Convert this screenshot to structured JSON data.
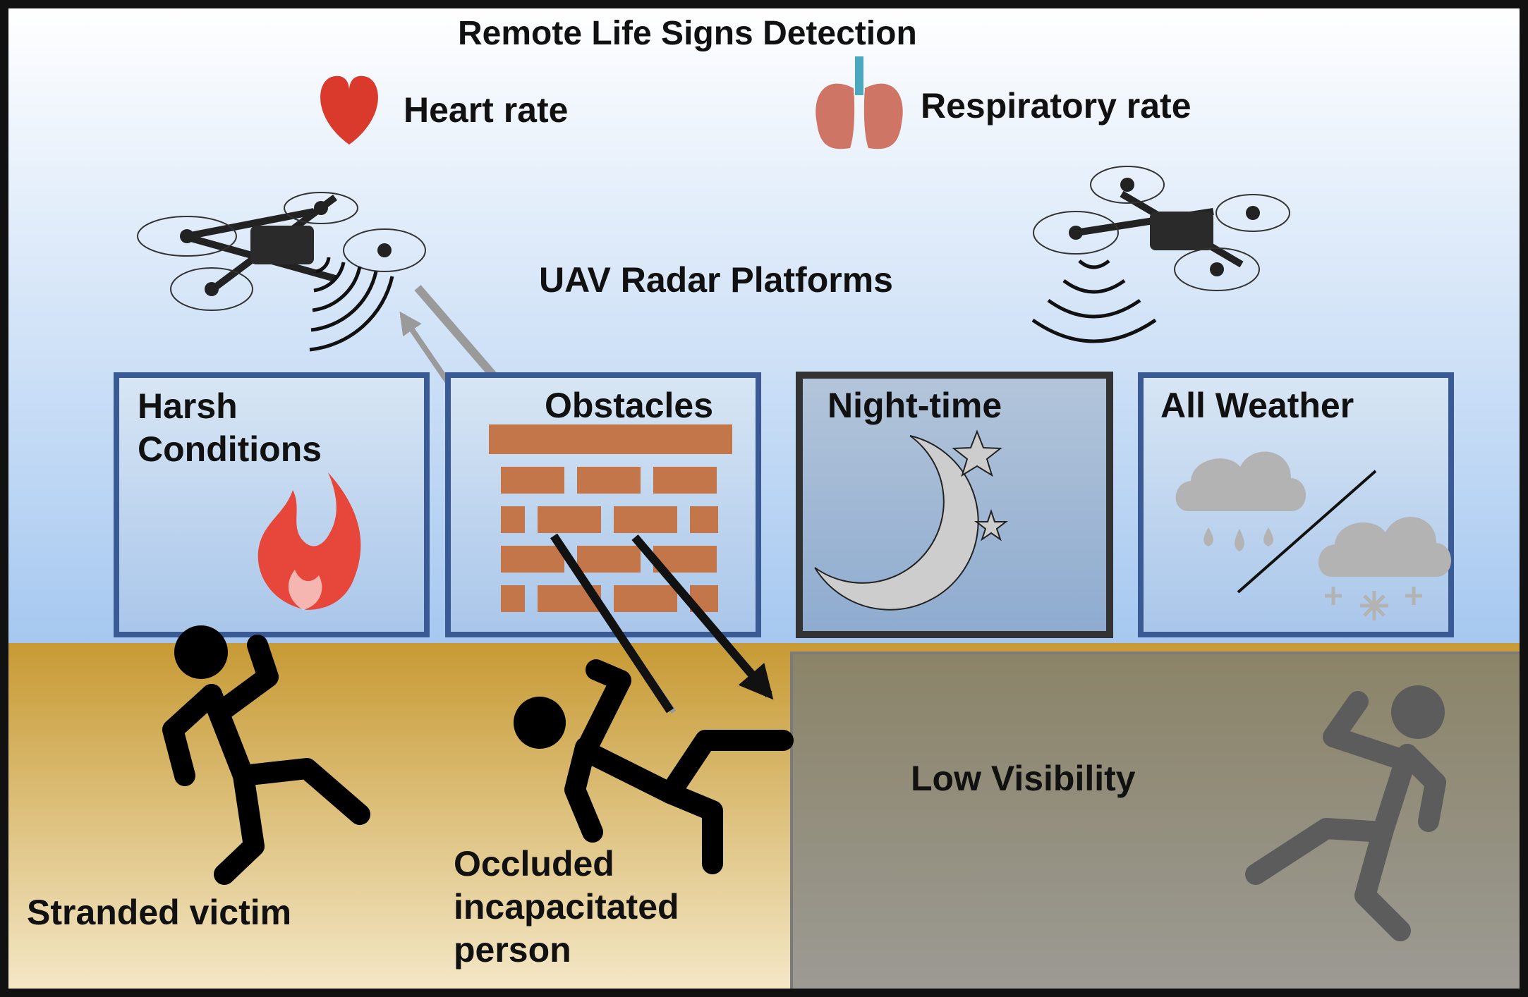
{
  "title": "Remote Life Signs Detection",
  "vital_signs": [
    {
      "label": "Heart rate",
      "icon": "heart-icon"
    },
    {
      "label": "Respiratory rate",
      "icon": "lungs-icon"
    }
  ],
  "platform_label": "UAV Radar Platforms",
  "conditions": [
    {
      "label": "Harsh Conditions",
      "icon": "flame-icon"
    },
    {
      "label": "Obstacles",
      "icon": "brick-wall-icon"
    },
    {
      "label": "Night-time",
      "icon": "moon-stars-icon"
    },
    {
      "label": "All Weather",
      "icon": "rain-snow-clouds-icon"
    }
  ],
  "victims": [
    {
      "label": "Stranded victim",
      "icon": "standing-person-icon"
    },
    {
      "label": "Occluded incapacitated person",
      "icon": "falling-person-icon"
    }
  ],
  "low_visibility_label": "Low Visibility",
  "colors": {
    "sky_top": "#ffffff",
    "sky_bottom": "#a6c8f0",
    "ground_top": "#c79a34",
    "ground_bottom": "#f4e8c8",
    "panel_border": "#3a5a96",
    "night_border": "#333333",
    "brick": "#c2764a",
    "flame": "#e6473a",
    "heart": "#d93a2b",
    "lungs": "#cf7565",
    "low_visibility_overlay": "#86806e"
  }
}
